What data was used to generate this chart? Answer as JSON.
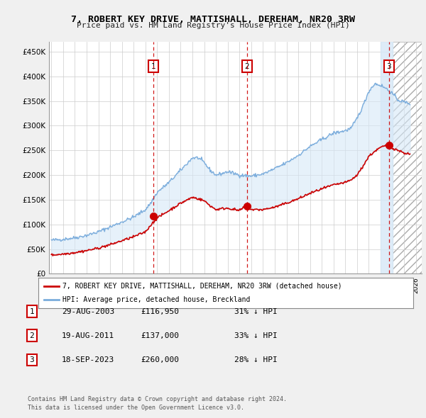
{
  "title": "7, ROBERT KEY DRIVE, MATTISHALL, DEREHAM, NR20 3RW",
  "subtitle": "Price paid vs. HM Land Registry's House Price Index (HPI)",
  "ylim": [
    0,
    470000
  ],
  "yticks": [
    0,
    50000,
    100000,
    150000,
    200000,
    250000,
    300000,
    350000,
    400000,
    450000
  ],
  "ytick_labels": [
    "£0",
    "£50K",
    "£100K",
    "£150K",
    "£200K",
    "£250K",
    "£300K",
    "£350K",
    "£400K",
    "£450K"
  ],
  "sale_dates": [
    2003.66,
    2011.63,
    2023.72
  ],
  "sale_prices": [
    116950,
    137000,
    260000
  ],
  "sale_labels": [
    "1",
    "2",
    "3"
  ],
  "legend_house": "7, ROBERT KEY DRIVE, MATTISHALL, DEREHAM, NR20 3RW (detached house)",
  "legend_hpi": "HPI: Average price, detached house, Breckland",
  "table_rows": [
    [
      "1",
      "29-AUG-2003",
      "£116,950",
      "31% ↓ HPI"
    ],
    [
      "2",
      "19-AUG-2011",
      "£137,000",
      "33% ↓ HPI"
    ],
    [
      "3",
      "18-SEP-2023",
      "£260,000",
      "28% ↓ HPI"
    ]
  ],
  "footnote1": "Contains HM Land Registry data © Crown copyright and database right 2024.",
  "footnote2": "This data is licensed under the Open Government Licence v3.0.",
  "house_color": "#cc0000",
  "hpi_color": "#7aacdc",
  "shade_color": "#d6e8f7",
  "grid_color": "#cccccc",
  "background_color": "#f0f0f0",
  "plot_bg_color": "#ffffff",
  "dashed_line_color": "#cc0000",
  "hatch_start": 2024.0,
  "xmin": 1994.8,
  "xmax": 2026.5
}
